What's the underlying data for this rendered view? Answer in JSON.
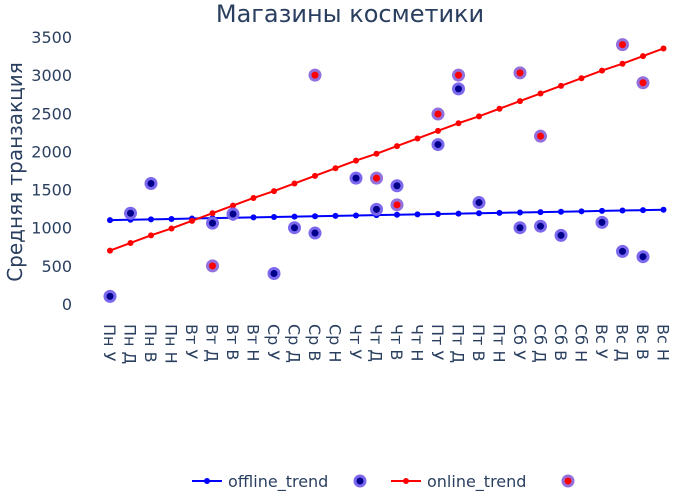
{
  "chart_data": {
    "type": "scatter",
    "title": "Магазины косметики",
    "ylabel": "Средняя транзакция",
    "xlabel": "",
    "ylim": [
      -100,
      3550
    ],
    "yticks": [
      0,
      500,
      1000,
      1500,
      2000,
      2500,
      3000,
      3500
    ],
    "grid": false,
    "legend_position": "bottom",
    "categories": [
      "Пн У",
      "Пн Д",
      "Пн В",
      "Пн Н",
      "Вт У",
      "Вт Д",
      "Вт В",
      "Вт Н",
      "Ср У",
      "Ср Д",
      "Ср В",
      "Ср Н",
      "Чт У",
      "Чт Д",
      "Чт В",
      "Чт Н",
      "Пт У",
      "Пт Д",
      "Пт В",
      "Пт Н",
      "Сб У",
      "Сб Д",
      "Сб В",
      "Сб Н",
      "Вс У",
      "Вс Д",
      "Вс В",
      "Вс Н"
    ],
    "series": [
      {
        "name": "offline_trend",
        "mode": "lines+markers",
        "color": "#0000ff",
        "values": [
          1100,
          1105,
          1110,
          1115,
          1120,
          1125,
          1130,
          1135,
          1140,
          1145,
          1150,
          1155,
          1160,
          1165,
          1170,
          1175,
          1180,
          1185,
          1190,
          1195,
          1200,
          1205,
          1210,
          1215,
          1220,
          1225,
          1230,
          1235
        ]
      },
      {
        "name": "",
        "mode": "markers",
        "color": "#00008b",
        "halo": "#7b68ee",
        "values": [
          100,
          1190,
          1580,
          null,
          null,
          1060,
          1180,
          null,
          400,
          1000,
          930,
          null,
          1650,
          1240,
          1550,
          null,
          2090,
          2820,
          1330,
          null,
          1000,
          1020,
          900,
          null,
          1070,
          690,
          620,
          null
        ]
      },
      {
        "name": "online_trend",
        "mode": "lines+markers",
        "color": "#ff0000",
        "values": [
          700,
          800,
          900,
          990,
          1090,
          1190,
          1290,
          1390,
          1480,
          1580,
          1680,
          1780,
          1880,
          1970,
          2070,
          2170,
          2270,
          2370,
          2460,
          2560,
          2660,
          2760,
          2860,
          2960,
          3060,
          3150,
          3250,
          3350
        ]
      },
      {
        "name": "",
        "mode": "markers",
        "color": "#ff0000",
        "halo": "#9370db",
        "values": [
          null,
          null,
          null,
          null,
          null,
          500,
          null,
          null,
          null,
          null,
          3000,
          null,
          null,
          1650,
          1300,
          null,
          2490,
          3000,
          null,
          null,
          3030,
          2200,
          null,
          null,
          null,
          3400,
          2900,
          null
        ]
      }
    ]
  }
}
